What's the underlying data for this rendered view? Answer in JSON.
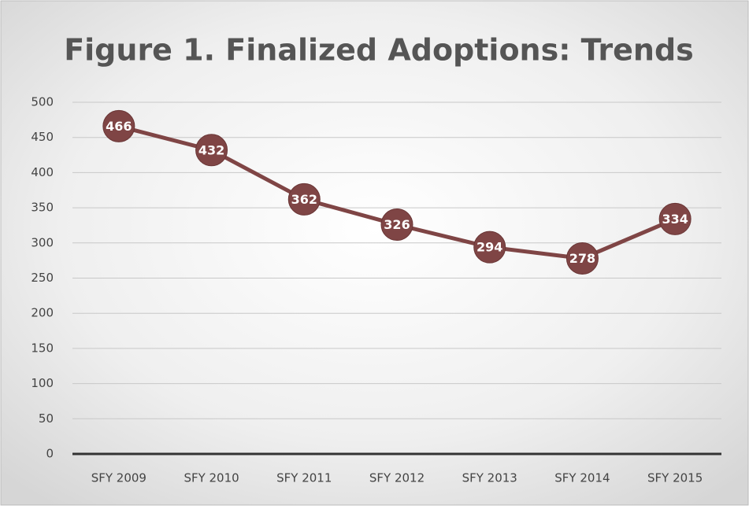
{
  "chart_data": {
    "type": "line",
    "title": "Figure 1. Finalized Adoptions: Trends",
    "categories": [
      "SFY 2009",
      "SFY 2010",
      "SFY 2011",
      "SFY 2012",
      "SFY 2013",
      "SFY 2014",
      "SFY 2015"
    ],
    "series": [
      {
        "name": "Finalized Adoptions",
        "color": "#7f4545",
        "values": [
          466,
          432,
          362,
          326,
          294,
          278,
          334
        ]
      }
    ],
    "ylim": [
      0,
      500
    ],
    "yticks": [
      0,
      50,
      100,
      150,
      200,
      250,
      300,
      350,
      400,
      450,
      500
    ],
    "grid": true
  }
}
